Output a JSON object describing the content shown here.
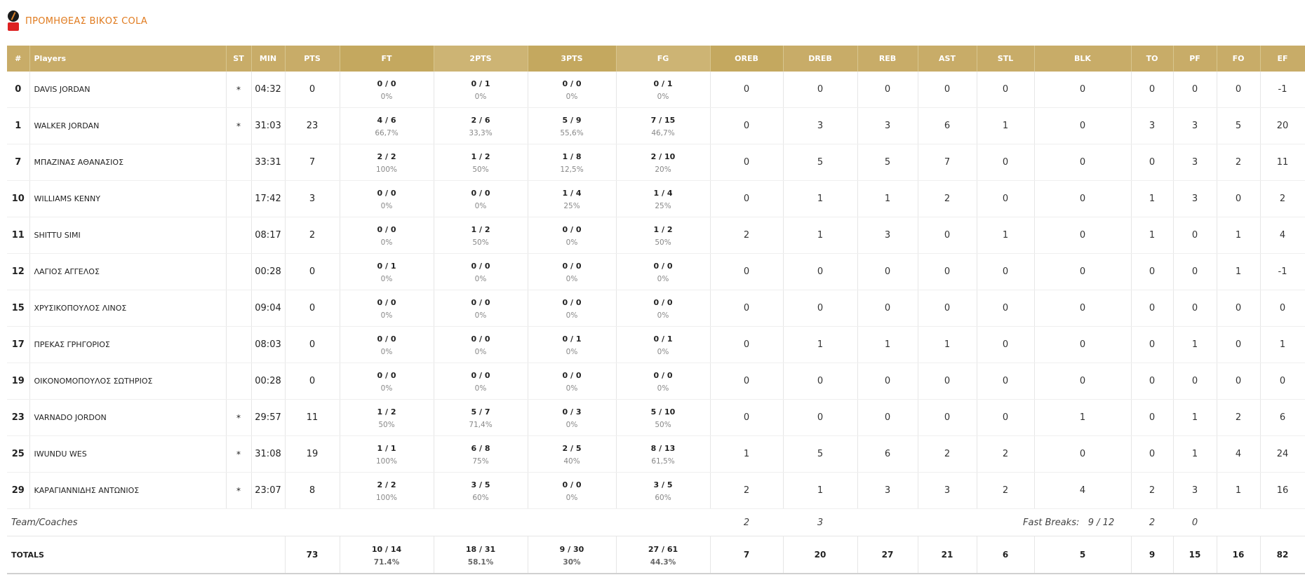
{
  "team": {
    "name": "ΠΡΟΜΗΘΕΑΣ ΒΙΚΟΣ COLA"
  },
  "columns": {
    "num": "#",
    "players": "Players",
    "st": "ST",
    "min": "MIN",
    "pts": "PTS",
    "ft": "FT",
    "pts2": "2PTS",
    "pts3": "3PTS",
    "fg": "FG",
    "oreb": "OREB",
    "dreb": "DREB",
    "reb": "REB",
    "ast": "AST",
    "stl": "STL",
    "blk": "BLK",
    "to": "TO",
    "pf": "PF",
    "fo": "FO",
    "ef": "EF"
  },
  "players": [
    {
      "num": "0",
      "name": "DAVIS JORDAN",
      "st": "*",
      "min": "04:32",
      "pts": "0",
      "ft": "0 / 0",
      "ft_pct": "0%",
      "p2": "0 / 1",
      "p2_pct": "0%",
      "p3": "0 / 0",
      "p3_pct": "0%",
      "fg": "0 / 1",
      "fg_pct": "0%",
      "oreb": "0",
      "dreb": "0",
      "reb": "0",
      "ast": "0",
      "stl": "0",
      "blk": "0",
      "to": "0",
      "pf": "0",
      "fo": "0",
      "ef": "-1"
    },
    {
      "num": "1",
      "name": "WALKER JORDAN",
      "st": "*",
      "min": "31:03",
      "pts": "23",
      "ft": "4 / 6",
      "ft_pct": "66,7%",
      "p2": "2 / 6",
      "p2_pct": "33,3%",
      "p3": "5 / 9",
      "p3_pct": "55,6%",
      "fg": "7 / 15",
      "fg_pct": "46,7%",
      "oreb": "0",
      "dreb": "3",
      "reb": "3",
      "ast": "6",
      "stl": "1",
      "blk": "0",
      "to": "3",
      "pf": "3",
      "fo": "5",
      "ef": "20"
    },
    {
      "num": "7",
      "name": "ΜΠΑΖΙΝΑΣ ΑΘΑΝΑΣΙΟΣ",
      "st": "",
      "min": "33:31",
      "pts": "7",
      "ft": "2 / 2",
      "ft_pct": "100%",
      "p2": "1 / 2",
      "p2_pct": "50%",
      "p3": "1 / 8",
      "p3_pct": "12,5%",
      "fg": "2 / 10",
      "fg_pct": "20%",
      "oreb": "0",
      "dreb": "5",
      "reb": "5",
      "ast": "7",
      "stl": "0",
      "blk": "0",
      "to": "0",
      "pf": "3",
      "fo": "2",
      "ef": "11"
    },
    {
      "num": "10",
      "name": "WILLIAMS KENNY",
      "st": "",
      "min": "17:42",
      "pts": "3",
      "ft": "0 / 0",
      "ft_pct": "0%",
      "p2": "0 / 0",
      "p2_pct": "0%",
      "p3": "1 / 4",
      "p3_pct": "25%",
      "fg": "1 / 4",
      "fg_pct": "25%",
      "oreb": "0",
      "dreb": "1",
      "reb": "1",
      "ast": "2",
      "stl": "0",
      "blk": "0",
      "to": "1",
      "pf": "3",
      "fo": "0",
      "ef": "2"
    },
    {
      "num": "11",
      "name": "SHITTU SIMI",
      "st": "",
      "min": "08:17",
      "pts": "2",
      "ft": "0 / 0",
      "ft_pct": "0%",
      "p2": "1 / 2",
      "p2_pct": "50%",
      "p3": "0 / 0",
      "p3_pct": "0%",
      "fg": "1 / 2",
      "fg_pct": "50%",
      "oreb": "2",
      "dreb": "1",
      "reb": "3",
      "ast": "0",
      "stl": "1",
      "blk": "0",
      "to": "1",
      "pf": "0",
      "fo": "1",
      "ef": "4"
    },
    {
      "num": "12",
      "name": "ΛΑΓΙΟΣ ΑΓΓΕΛΟΣ",
      "st": "",
      "min": "00:28",
      "pts": "0",
      "ft": "0 / 1",
      "ft_pct": "0%",
      "p2": "0 / 0",
      "p2_pct": "0%",
      "p3": "0 / 0",
      "p3_pct": "0%",
      "fg": "0 / 0",
      "fg_pct": "0%",
      "oreb": "0",
      "dreb": "0",
      "reb": "0",
      "ast": "0",
      "stl": "0",
      "blk": "0",
      "to": "0",
      "pf": "0",
      "fo": "1",
      "ef": "-1"
    },
    {
      "num": "15",
      "name": "ΧΡΥΣΙΚΟΠΟΥΛΟΣ ΛΙΝΟΣ",
      "st": "",
      "min": "09:04",
      "pts": "0",
      "ft": "0 / 0",
      "ft_pct": "0%",
      "p2": "0 / 0",
      "p2_pct": "0%",
      "p3": "0 / 0",
      "p3_pct": "0%",
      "fg": "0 / 0",
      "fg_pct": "0%",
      "oreb": "0",
      "dreb": "0",
      "reb": "0",
      "ast": "0",
      "stl": "0",
      "blk": "0",
      "to": "0",
      "pf": "0",
      "fo": "0",
      "ef": "0"
    },
    {
      "num": "17",
      "name": "ΠΡΕΚΑΣ ΓΡΗΓΟΡΙΟΣ",
      "st": "",
      "min": "08:03",
      "pts": "0",
      "ft": "0 / 0",
      "ft_pct": "0%",
      "p2": "0 / 0",
      "p2_pct": "0%",
      "p3": "0 / 1",
      "p3_pct": "0%",
      "fg": "0 / 1",
      "fg_pct": "0%",
      "oreb": "0",
      "dreb": "1",
      "reb": "1",
      "ast": "1",
      "stl": "0",
      "blk": "0",
      "to": "0",
      "pf": "1",
      "fo": "0",
      "ef": "1"
    },
    {
      "num": "19",
      "name": "ΟΙΚΟΝΟΜΟΠΟΥΛΟΣ ΣΩΤΗΡΙΟΣ",
      "st": "",
      "min": "00:28",
      "pts": "0",
      "ft": "0 / 0",
      "ft_pct": "0%",
      "p2": "0 / 0",
      "p2_pct": "0%",
      "p3": "0 / 0",
      "p3_pct": "0%",
      "fg": "0 / 0",
      "fg_pct": "0%",
      "oreb": "0",
      "dreb": "0",
      "reb": "0",
      "ast": "0",
      "stl": "0",
      "blk": "0",
      "to": "0",
      "pf": "0",
      "fo": "0",
      "ef": "0"
    },
    {
      "num": "23",
      "name": "VARNADO JORDON",
      "st": "*",
      "min": "29:57",
      "pts": "11",
      "ft": "1 / 2",
      "ft_pct": "50%",
      "p2": "5 / 7",
      "p2_pct": "71,4%",
      "p3": "0 / 3",
      "p3_pct": "0%",
      "fg": "5 / 10",
      "fg_pct": "50%",
      "oreb": "0",
      "dreb": "0",
      "reb": "0",
      "ast": "0",
      "stl": "0",
      "blk": "1",
      "to": "0",
      "pf": "1",
      "fo": "2",
      "ef": "6"
    },
    {
      "num": "25",
      "name": "IWUNDU WES",
      "st": "*",
      "min": "31:08",
      "pts": "19",
      "ft": "1 / 1",
      "ft_pct": "100%",
      "p2": "6 / 8",
      "p2_pct": "75%",
      "p3": "2 / 5",
      "p3_pct": "40%",
      "fg": "8 / 13",
      "fg_pct": "61,5%",
      "oreb": "1",
      "dreb": "5",
      "reb": "6",
      "ast": "2",
      "stl": "2",
      "blk": "0",
      "to": "0",
      "pf": "1",
      "fo": "4",
      "ef": "24"
    },
    {
      "num": "29",
      "name": "ΚΑΡΑΓΙΑΝΝΙΔΗΣ ΑΝΤΩΝΙΟΣ",
      "st": "*",
      "min": "23:07",
      "pts": "8",
      "ft": "2 / 2",
      "ft_pct": "100%",
      "p2": "3 / 5",
      "p2_pct": "60%",
      "p3": "0 / 0",
      "p3_pct": "0%",
      "fg": "3 / 5",
      "fg_pct": "60%",
      "oreb": "2",
      "dreb": "1",
      "reb": "3",
      "ast": "3",
      "stl": "2",
      "blk": "4",
      "to": "2",
      "pf": "3",
      "fo": "1",
      "ef": "16"
    }
  ],
  "team_coaches": {
    "label": "Team/Coaches",
    "oreb": "2",
    "dreb": "3",
    "fast_breaks_label": "Fast Breaks:",
    "fast_breaks": "9 / 12",
    "to": "2",
    "pf": "0"
  },
  "totals": {
    "label": "TOTALS",
    "pts": "73",
    "ft": "10 / 14",
    "ft_pct": "71.4%",
    "p2": "18 / 31",
    "p2_pct": "58.1%",
    "p3": "9 / 30",
    "p3_pct": "30%",
    "fg": "27 / 61",
    "fg_pct": "44.3%",
    "oreb": "7",
    "dreb": "20",
    "reb": "27",
    "ast": "21",
    "stl": "6",
    "blk": "5",
    "to": "9",
    "pf": "15",
    "fo": "16",
    "ef": "82"
  }
}
